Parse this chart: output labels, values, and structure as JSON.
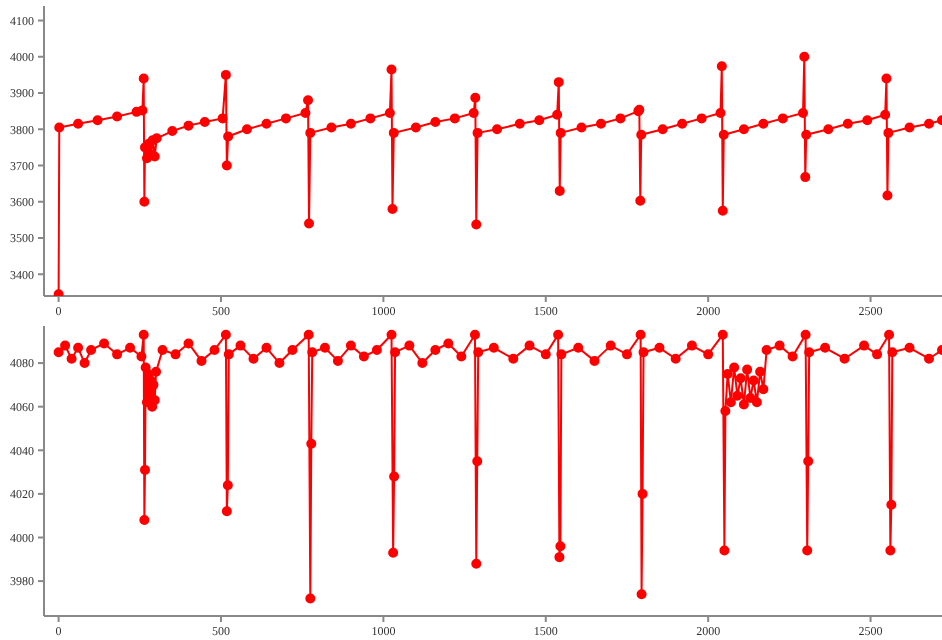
{
  "chart_data": [
    {
      "type": "line",
      "x": [
        0,
        2,
        60,
        120,
        180,
        240,
        258,
        262,
        264,
        266,
        272,
        278,
        284,
        290,
        296,
        302,
        350,
        400,
        450,
        505,
        515,
        518,
        522,
        580,
        640,
        700,
        760,
        768,
        771,
        775,
        840,
        900,
        960,
        1020,
        1025,
        1028,
        1032,
        1100,
        1160,
        1220,
        1278,
        1283,
        1286,
        1290,
        1350,
        1420,
        1480,
        1535,
        1540,
        1543,
        1546,
        1610,
        1670,
        1730,
        1785,
        1788,
        1791,
        1794,
        1860,
        1920,
        1980,
        2038,
        2042,
        2045,
        2048,
        2110,
        2170,
        2230,
        2292,
        2296,
        2299,
        2302,
        2370,
        2430,
        2490,
        2545,
        2549,
        2552,
        2555,
        2620,
        2680,
        2720
      ],
      "series": [
        {
          "color": "#ff0000",
          "values": [
            3345,
            3805,
            3815,
            3825,
            3835,
            3848,
            3852,
            3940,
            3600,
            3750,
            3720,
            3760,
            3730,
            3770,
            3725,
            3775,
            3795,
            3810,
            3820,
            3830,
            3950,
            3700,
            3780,
            3800,
            3815,
            3830,
            3845,
            3880,
            3540,
            3790,
            3805,
            3815,
            3830,
            3845,
            3965,
            3580,
            3790,
            3805,
            3820,
            3830,
            3845,
            3887,
            3537,
            3790,
            3800,
            3815,
            3825,
            3840,
            3930,
            3630,
            3790,
            3805,
            3815,
            3830,
            3850,
            3854,
            3603,
            3785,
            3800,
            3815,
            3830,
            3845,
            3974,
            3575,
            3785,
            3800,
            3815,
            3830,
            3845,
            4000,
            3668,
            3785,
            3800,
            3815,
            3825,
            3840,
            3940,
            3617,
            3790,
            3805,
            3815,
            3825
          ]
        }
      ],
      "xlim": [
        -45,
        2720
      ],
      "xticks": [
        0,
        500,
        1000,
        1500,
        2000,
        2500
      ],
      "ylim": [
        3340,
        4140
      ],
      "yticks": [
        3400,
        3500,
        3600,
        3700,
        3800,
        3900,
        4000,
        4100
      ],
      "marker": "circle",
      "grid": false,
      "legend": false
    },
    {
      "type": "line",
      "x": [
        0,
        20,
        40,
        60,
        80,
        100,
        140,
        180,
        220,
        255,
        262,
        264,
        266,
        268,
        272,
        276,
        280,
        284,
        288,
        292,
        296,
        300,
        320,
        360,
        400,
        440,
        480,
        515,
        518,
        521,
        524,
        560,
        600,
        640,
        680,
        720,
        770,
        775,
        778,
        781,
        820,
        860,
        900,
        940,
        980,
        1025,
        1030,
        1033,
        1036,
        1080,
        1120,
        1160,
        1200,
        1240,
        1282,
        1286,
        1289,
        1292,
        1340,
        1400,
        1450,
        1500,
        1538,
        1542,
        1545,
        1548,
        1600,
        1650,
        1700,
        1750,
        1792,
        1795,
        1798,
        1801,
        1850,
        1900,
        1950,
        2000,
        2045,
        2050,
        2053,
        2060,
        2070,
        2080,
        2090,
        2100,
        2110,
        2120,
        2130,
        2140,
        2150,
        2160,
        2170,
        2180,
        2220,
        2260,
        2300,
        2305,
        2308,
        2311,
        2360,
        2420,
        2480,
        2520,
        2557,
        2561,
        2564,
        2567,
        2620,
        2680,
        2720
      ],
      "series": [
        {
          "color": "#ff0000",
          "values": [
            4085,
            4088,
            4082,
            4087,
            4080,
            4086,
            4089,
            4084,
            4087,
            4083,
            4093,
            4008,
            4031,
            4078,
            4062,
            4075,
            4064,
            4072,
            4060,
            4070,
            4063,
            4076,
            4086,
            4084,
            4089,
            4081,
            4086,
            4093,
            4012,
            4024,
            4084,
            4088,
            4082,
            4087,
            4080,
            4086,
            4093,
            3972,
            4043,
            4085,
            4087,
            4081,
            4088,
            4083,
            4086,
            4093,
            3993,
            4028,
            4085,
            4088,
            4080,
            4086,
            4089,
            4083,
            4093,
            3988,
            4035,
            4085,
            4087,
            4082,
            4088,
            4084,
            4093,
            3991,
            3996,
            4084,
            4087,
            4081,
            4088,
            4084,
            4093,
            3974,
            4020,
            4085,
            4087,
            4082,
            4088,
            4084,
            4093,
            3994,
            4058,
            4075,
            4062,
            4078,
            4065,
            4073,
            4061,
            4077,
            4064,
            4072,
            4062,
            4076,
            4068,
            4086,
            4088,
            4083,
            4093,
            3994,
            4035,
            4085,
            4087,
            4082,
            4088,
            4084,
            4093,
            3994,
            4015,
            4085,
            4087,
            4082,
            4086
          ]
        }
      ],
      "xlim": [
        -45,
        2720
      ],
      "xticks": [
        0,
        500,
        1000,
        1500,
        2000,
        2500
      ],
      "ylim": [
        3964,
        4097
      ],
      "yticks": [
        3980,
        4000,
        4020,
        4040,
        4060,
        4080
      ],
      "marker": "circle",
      "grid": false,
      "legend": false
    }
  ]
}
